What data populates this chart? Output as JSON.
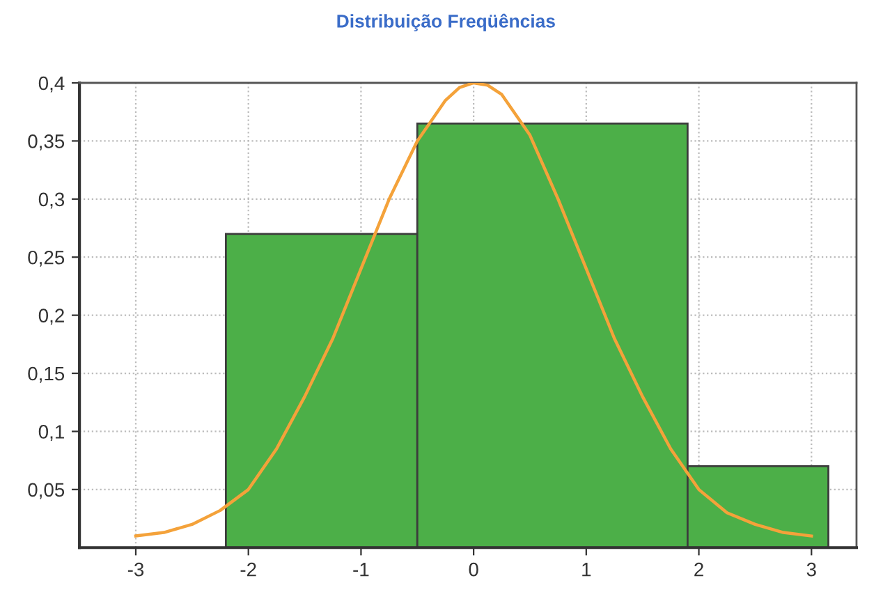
{
  "chart_data": {
    "type": "histogram",
    "title": "Distribuição Freqüências",
    "series": [
      {
        "color": "#4caf48",
        "bins": [
          -2.2,
          -0.5,
          1.9,
          3.15
        ],
        "values": [
          0.27,
          0.365,
          0.07
        ]
      },
      {
        "type": "line",
        "color": "#f4a23a",
        "x": [
          -3,
          -2.75,
          -2.5,
          -2.25,
          -2,
          -1.75,
          -1.5,
          -1.25,
          -1,
          -0.75,
          -0.5,
          -0.25,
          -0.125,
          0,
          0.125,
          0.25,
          0.5,
          0.75,
          1,
          1.25,
          1.5,
          1.75,
          2,
          2.25,
          2.5,
          2.75,
          3
        ],
        "values": [
          0.01,
          0.013,
          0.02,
          0.032,
          0.05,
          0.085,
          0.13,
          0.18,
          0.24,
          0.3,
          0.35,
          0.385,
          0.396,
          0.4,
          0.398,
          0.39,
          0.355,
          0.3,
          0.24,
          0.18,
          0.13,
          0.085,
          0.05,
          0.03,
          0.02,
          0.013,
          0.01
        ]
      }
    ],
    "xlim": [
      -3.5,
      3.4
    ],
    "xticks": [
      -3,
      -2,
      -1,
      0,
      1,
      2,
      3
    ],
    "ylim": [
      0,
      0.4
    ],
    "yticks": [
      {
        "value": 0.05,
        "label": "0,05"
      },
      {
        "value": 0.1,
        "label": "0,1"
      },
      {
        "value": 0.15,
        "label": "0,15"
      },
      {
        "value": 0.2,
        "label": "0,2"
      },
      {
        "value": 0.25,
        "label": "0,25"
      },
      {
        "value": 0.3,
        "label": "0,3"
      },
      {
        "value": 0.35,
        "label": "0,35"
      },
      {
        "value": 0.4,
        "label": "0,4"
      }
    ],
    "grid": true
  }
}
